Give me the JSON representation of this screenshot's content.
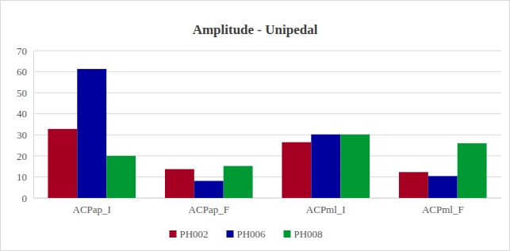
{
  "chart_data": {
    "type": "bar",
    "title": "Amplitude - Unipedal",
    "categories": [
      "ACPap_I",
      "ACPap_F",
      "ACPml_I",
      "ACPml_F"
    ],
    "series": [
      {
        "name": "PH002",
        "color": "#a50021",
        "values": [
          32.8,
          13.7,
          26.5,
          12.3
        ]
      },
      {
        "name": "PH006",
        "color": "#00009c",
        "values": [
          61.3,
          8.1,
          30.2,
          10.4
        ]
      },
      {
        "name": "PH008",
        "color": "#009933",
        "values": [
          20.0,
          15.2,
          30.2,
          26.0
        ]
      }
    ],
    "ylim": [
      0,
      70
    ],
    "yticks": [
      0,
      10,
      20,
      30,
      40,
      50,
      60,
      70
    ],
    "grid": true,
    "legend": "bottom"
  }
}
